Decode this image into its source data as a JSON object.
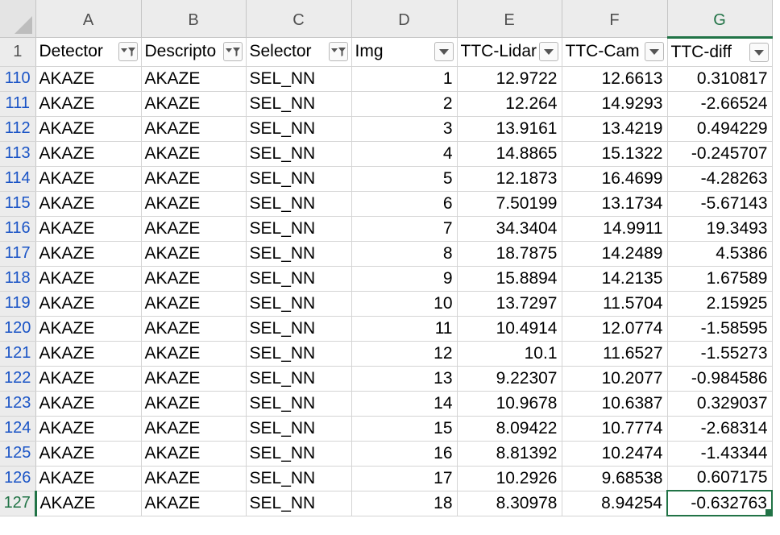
{
  "column_letters": [
    "A",
    "B",
    "C",
    "D",
    "E",
    "F",
    "G"
  ],
  "header_row": {
    "row_number": "1",
    "cells": [
      {
        "label": "Detector",
        "filter_active": true
      },
      {
        "label": "Descripto",
        "filter_active": true
      },
      {
        "label": "Selector",
        "filter_active": true
      },
      {
        "label": "Img",
        "filter_active": false
      },
      {
        "label": "TTC-Lidar",
        "filter_active": false
      },
      {
        "label": "TTC-Cam",
        "filter_active": false
      },
      {
        "label": "TTC-diff",
        "filter_active": false
      }
    ]
  },
  "rows": [
    {
      "row": "110",
      "detector": "AKAZE",
      "descriptor": "AKAZE",
      "selector": "SEL_NN",
      "img": "1",
      "ttc_lidar": "12.9722",
      "ttc_cam": "12.6613",
      "ttc_diff": "0.310817"
    },
    {
      "row": "111",
      "detector": "AKAZE",
      "descriptor": "AKAZE",
      "selector": "SEL_NN",
      "img": "2",
      "ttc_lidar": "12.264",
      "ttc_cam": "14.9293",
      "ttc_diff": "-2.66524"
    },
    {
      "row": "112",
      "detector": "AKAZE",
      "descriptor": "AKAZE",
      "selector": "SEL_NN",
      "img": "3",
      "ttc_lidar": "13.9161",
      "ttc_cam": "13.4219",
      "ttc_diff": "0.494229"
    },
    {
      "row": "113",
      "detector": "AKAZE",
      "descriptor": "AKAZE",
      "selector": "SEL_NN",
      "img": "4",
      "ttc_lidar": "14.8865",
      "ttc_cam": "15.1322",
      "ttc_diff": "-0.245707"
    },
    {
      "row": "114",
      "detector": "AKAZE",
      "descriptor": "AKAZE",
      "selector": "SEL_NN",
      "img": "5",
      "ttc_lidar": "12.1873",
      "ttc_cam": "16.4699",
      "ttc_diff": "-4.28263"
    },
    {
      "row": "115",
      "detector": "AKAZE",
      "descriptor": "AKAZE",
      "selector": "SEL_NN",
      "img": "6",
      "ttc_lidar": "7.50199",
      "ttc_cam": "13.1734",
      "ttc_diff": "-5.67143"
    },
    {
      "row": "116",
      "detector": "AKAZE",
      "descriptor": "AKAZE",
      "selector": "SEL_NN",
      "img": "7",
      "ttc_lidar": "34.3404",
      "ttc_cam": "14.9911",
      "ttc_diff": "19.3493"
    },
    {
      "row": "117",
      "detector": "AKAZE",
      "descriptor": "AKAZE",
      "selector": "SEL_NN",
      "img": "8",
      "ttc_lidar": "18.7875",
      "ttc_cam": "14.2489",
      "ttc_diff": "4.5386"
    },
    {
      "row": "118",
      "detector": "AKAZE",
      "descriptor": "AKAZE",
      "selector": "SEL_NN",
      "img": "9",
      "ttc_lidar": "15.8894",
      "ttc_cam": "14.2135",
      "ttc_diff": "1.67589"
    },
    {
      "row": "119",
      "detector": "AKAZE",
      "descriptor": "AKAZE",
      "selector": "SEL_NN",
      "img": "10",
      "ttc_lidar": "13.7297",
      "ttc_cam": "11.5704",
      "ttc_diff": "2.15925"
    },
    {
      "row": "120",
      "detector": "AKAZE",
      "descriptor": "AKAZE",
      "selector": "SEL_NN",
      "img": "11",
      "ttc_lidar": "10.4914",
      "ttc_cam": "12.0774",
      "ttc_diff": "-1.58595"
    },
    {
      "row": "121",
      "detector": "AKAZE",
      "descriptor": "AKAZE",
      "selector": "SEL_NN",
      "img": "12",
      "ttc_lidar": "10.1",
      "ttc_cam": "11.6527",
      "ttc_diff": "-1.55273"
    },
    {
      "row": "122",
      "detector": "AKAZE",
      "descriptor": "AKAZE",
      "selector": "SEL_NN",
      "img": "13",
      "ttc_lidar": "9.22307",
      "ttc_cam": "10.2077",
      "ttc_diff": "-0.984586"
    },
    {
      "row": "123",
      "detector": "AKAZE",
      "descriptor": "AKAZE",
      "selector": "SEL_NN",
      "img": "14",
      "ttc_lidar": "10.9678",
      "ttc_cam": "10.6387",
      "ttc_diff": "0.329037"
    },
    {
      "row": "124",
      "detector": "AKAZE",
      "descriptor": "AKAZE",
      "selector": "SEL_NN",
      "img": "15",
      "ttc_lidar": "8.09422",
      "ttc_cam": "10.7774",
      "ttc_diff": "-2.68314"
    },
    {
      "row": "125",
      "detector": "AKAZE",
      "descriptor": "AKAZE",
      "selector": "SEL_NN",
      "img": "16",
      "ttc_lidar": "8.81392",
      "ttc_cam": "10.2474",
      "ttc_diff": "-1.43344"
    },
    {
      "row": "126",
      "detector": "AKAZE",
      "descriptor": "AKAZE",
      "selector": "SEL_NN",
      "img": "17",
      "ttc_lidar": "10.2926",
      "ttc_cam": "9.68538",
      "ttc_diff": "0.607175"
    },
    {
      "row": "127",
      "detector": "AKAZE",
      "descriptor": "AKAZE",
      "selector": "SEL_NN",
      "img": "18",
      "ttc_lidar": "8.30978",
      "ttc_cam": "8.94254",
      "ttc_diff": "-0.632763"
    }
  ],
  "selection": {
    "active_cell_column": "G",
    "active_cell_row": "127"
  },
  "colors": {
    "accent": "#217346",
    "row_number_text": "#1a54c6",
    "header_bg": "#ececec",
    "gridline": "#d4d4d4"
  },
  "icons": {
    "filter_active": "filter-funnel-dropdown-icon",
    "filter_inactive": "dropdown-arrow-icon",
    "corner": "select-all-icon"
  }
}
